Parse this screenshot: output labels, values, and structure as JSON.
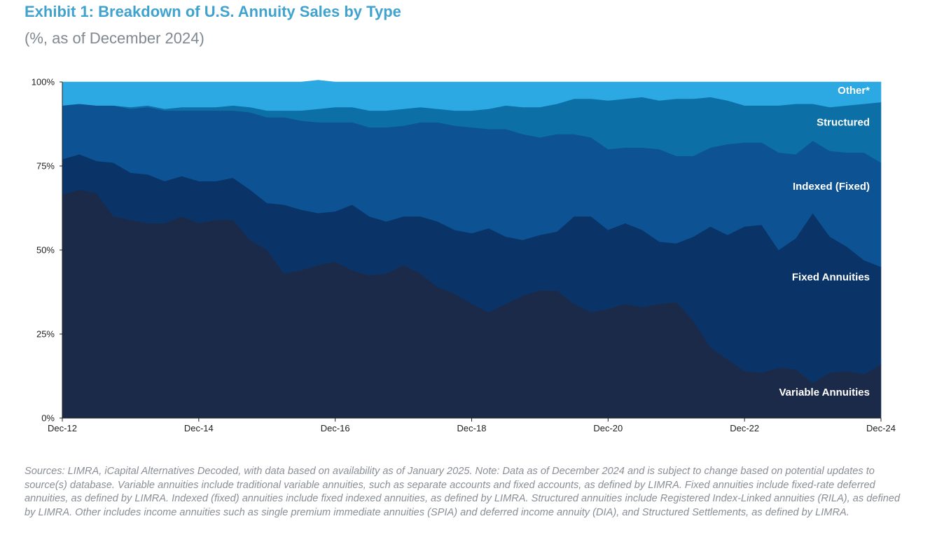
{
  "title": "Exhibit 1: Breakdown of U.S. Annuity Sales by Type",
  "subtitle": "(%, as of December 2024)",
  "note": "Sources: LIMRA, iCapital Alternatives Decoded, with data based on availability as of January 2025. Note: Data as of December 2024 and is subject to change based on potential updates to source(s) database. Variable annuities include traditional variable annuities, such as separate accounts and fixed accounts, as defined by LIMRA. Fixed annuities include fixed-rate deferred annuities, as defined by LIMRA. Indexed (fixed) annuities include fixed indexed annuities, as defined by LIMRA. Structured annuities include Registered Index-Linked annuities (RILA), as defined by LIMRA. Other includes income annuities such as single premium immediate annuities (SPIA) and deferred income annuity (DIA), and Structured Settlements, as defined by LIMRA.",
  "chart_data": {
    "type": "area",
    "stacked": true,
    "x": [
      "Dec-12",
      "Mar-13",
      "Jun-13",
      "Sep-13",
      "Dec-13",
      "Mar-14",
      "Jun-14",
      "Sep-14",
      "Dec-14",
      "Mar-15",
      "Jun-15",
      "Sep-15",
      "Dec-15",
      "Mar-16",
      "Jun-16",
      "Sep-16",
      "Dec-16",
      "Mar-17",
      "Jun-17",
      "Sep-17",
      "Dec-17",
      "Mar-18",
      "Jun-18",
      "Sep-18",
      "Dec-18",
      "Mar-19",
      "Jun-19",
      "Sep-19",
      "Dec-19",
      "Mar-20",
      "Jun-20",
      "Sep-20",
      "Dec-20",
      "Mar-21",
      "Jun-21",
      "Sep-21",
      "Dec-21",
      "Mar-22",
      "Jun-22",
      "Sep-22",
      "Dec-22",
      "Mar-23",
      "Jun-23",
      "Sep-23",
      "Dec-23",
      "Mar-24",
      "Jun-24",
      "Sep-24",
      "Dec-24"
    ],
    "x_tick_labels": [
      "Dec-12",
      "Dec-14",
      "Dec-16",
      "Dec-18",
      "Dec-20",
      "Dec-22",
      "Dec-24"
    ],
    "y_tick_labels": [
      "0%",
      "25%",
      "50%",
      "75%",
      "100%"
    ],
    "ylim": [
      0,
      100
    ],
    "series": [
      {
        "name": "Variable Annuities",
        "color": "#1C2A4A",
        "values": [
          66.5,
          68,
          67,
          60,
          59,
          58,
          58,
          60,
          58,
          59,
          59,
          53,
          50,
          43,
          44,
          45.5,
          46.5,
          44,
          42.5,
          43,
          45.5,
          43,
          39,
          37,
          34,
          31.5,
          34,
          36.5,
          38,
          38,
          34,
          31.5,
          32.5,
          34,
          33,
          34,
          34.5,
          29,
          21,
          17.5,
          14,
          13.5,
          15,
          14.5,
          10.5,
          13.5,
          14,
          13,
          16
        ]
      },
      {
        "name": "Fixed Annuities",
        "color": "#0A3468",
        "values": [
          10.5,
          10.5,
          9.5,
          16,
          14,
          14.5,
          12.5,
          12,
          12.5,
          11.5,
          12.5,
          15,
          14,
          20.5,
          18,
          15.5,
          15,
          19.5,
          17.5,
          15.5,
          14.5,
          17,
          19.5,
          19,
          21,
          25,
          20,
          16.5,
          16.5,
          17.5,
          26,
          28.5,
          23.5,
          24,
          23,
          18.5,
          17.5,
          25,
          36,
          37,
          43,
          44,
          35,
          39,
          50.5,
          40.5,
          37,
          34,
          29
        ]
      },
      {
        "name": "Indexed (Fixed)",
        "color": "#0D5394",
        "values": [
          16,
          15,
          16.5,
          17,
          19,
          20,
          21,
          19.5,
          21,
          21,
          20,
          23,
          25.5,
          26,
          26.5,
          27,
          26.5,
          24.5,
          26.5,
          28,
          27,
          28,
          29.5,
          31,
          31.5,
          29.5,
          32,
          31.5,
          29,
          29,
          24.5,
          23.5,
          24,
          22.5,
          24.5,
          27.5,
          26,
          24,
          23.5,
          27,
          25,
          24.5,
          29,
          25,
          21.5,
          25.5,
          28,
          32,
          31
        ]
      },
      {
        "name": "Structured",
        "color": "#0C70A6",
        "values": [
          0,
          0,
          0,
          0,
          0.5,
          0.5,
          0.5,
          1,
          1,
          1,
          1.5,
          1.5,
          2,
          2,
          3,
          4,
          4.5,
          4.5,
          5,
          5,
          5,
          4.5,
          4,
          4.5,
          5,
          6,
          7,
          8,
          9,
          9,
          10.5,
          11.5,
          14.5,
          14.5,
          15,
          14.5,
          17,
          17,
          15,
          13,
          11,
          11,
          14,
          15,
          11,
          13,
          14,
          14.5,
          18
        ]
      },
      {
        "name": "Other*",
        "color": "#2CA8E2",
        "values": [
          7,
          6.5,
          7,
          7,
          7.5,
          7,
          8,
          7.5,
          7.5,
          7.5,
          7,
          7.5,
          8.5,
          8.5,
          8.5,
          8.5,
          7.5,
          7.5,
          8.5,
          8.5,
          8,
          7.5,
          8,
          8.5,
          8.5,
          8,
          7,
          7.5,
          7.5,
          6.5,
          5,
          5,
          5.5,
          5,
          4.5,
          5.5,
          5,
          5,
          4.5,
          5.5,
          7,
          7,
          7,
          6.5,
          6.5,
          7.5,
          7,
          6.5,
          6
        ]
      }
    ],
    "series_labels": [
      "Other*",
      "Structured",
      "Indexed (Fixed)",
      "Fixed Annuities",
      "Variable Annuities"
    ]
  }
}
